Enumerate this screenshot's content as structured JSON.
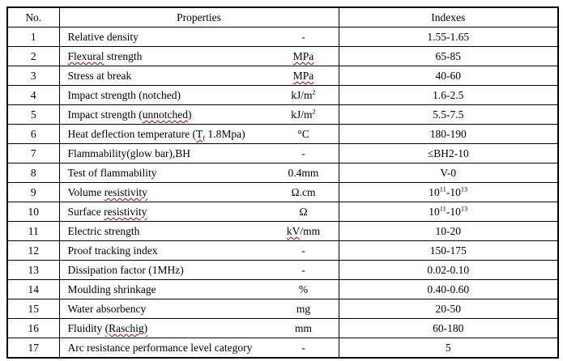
{
  "page": {
    "background": "#ffffff",
    "text_color": "#000000"
  },
  "table": {
    "border_color": "#000000",
    "squiggle_color": "#b00000",
    "headers": {
      "no": "No.",
      "properties": "Properties",
      "indexes": "Indexes"
    },
    "rows": [
      {
        "no": "1",
        "property": [
          {
            "t": "Relative density"
          }
        ],
        "unit": [
          {
            "t": "-"
          }
        ],
        "index": [
          {
            "t": "1.55-1.65"
          }
        ]
      },
      {
        "no": "2",
        "property": [
          {
            "t": "Flexural",
            "squiggle": true
          },
          {
            "t": " strength"
          }
        ],
        "unit": [
          {
            "t": "MPa",
            "squiggle": true
          }
        ],
        "index": [
          {
            "t": "65-85"
          }
        ]
      },
      {
        "no": "3",
        "property": [
          {
            "t": "Stress at break"
          }
        ],
        "unit": [
          {
            "t": "MPa",
            "squiggle": true
          }
        ],
        "index": [
          {
            "t": "40-60"
          }
        ]
      },
      {
        "no": "4",
        "property": [
          {
            "t": "Impact strength (notched)"
          }
        ],
        "unit": [
          {
            "t": "kJ/m"
          },
          {
            "t": "2",
            "style": "sup"
          }
        ],
        "index": [
          {
            "t": "1.6-2.5"
          }
        ]
      },
      {
        "no": "5",
        "property": [
          {
            "t": "Impact strength ("
          },
          {
            "t": "unnotched",
            "squiggle": true
          },
          {
            "t": ")"
          }
        ],
        "unit": [
          {
            "t": "kJ/m"
          },
          {
            "t": "2",
            "style": "sup"
          }
        ],
        "index": [
          {
            "t": "5.5-7.5"
          }
        ]
      },
      {
        "no": "6",
        "property": [
          {
            "t": "Heat deflection temperature ("
          },
          {
            "t": "T",
            "squiggle": true
          },
          {
            "t": "f",
            "style": "sub",
            "squiggle": true
          },
          {
            "t": " 1.8Mpa)"
          }
        ],
        "unit": [
          {
            "t": "°C"
          }
        ],
        "index": [
          {
            "t": "180-190"
          }
        ]
      },
      {
        "no": "7",
        "property": [
          {
            "t": "Flammability(glow bar),BH"
          }
        ],
        "unit": [
          {
            "t": "-"
          }
        ],
        "index": [
          {
            "t": "≤BH2-10"
          }
        ]
      },
      {
        "no": "8",
        "property": [
          {
            "t": "Test of flammability"
          }
        ],
        "unit": [
          {
            "t": "0.4mm"
          }
        ],
        "index": [
          {
            "t": "V-0"
          }
        ]
      },
      {
        "no": "9",
        "property": [
          {
            "t": "Volume "
          },
          {
            "t": "resistivity",
            "squiggle": true
          }
        ],
        "unit": [
          {
            "t": "Ω.cm"
          }
        ],
        "index": [
          {
            "t": "10"
          },
          {
            "t": "11",
            "style": "sup"
          },
          {
            "t": "-10"
          },
          {
            "t": "13",
            "style": "sup"
          }
        ]
      },
      {
        "no": "10",
        "property": [
          {
            "t": "Surface "
          },
          {
            "t": "resistivity",
            "squiggle": true
          }
        ],
        "unit": [
          {
            "t": "Ω"
          }
        ],
        "index": [
          {
            "t": "10"
          },
          {
            "t": "11",
            "style": "sup"
          },
          {
            "t": "-10"
          },
          {
            "t": "13",
            "style": "sup"
          }
        ]
      },
      {
        "no": "11",
        "property": [
          {
            "t": "Electric strength"
          }
        ],
        "unit": [
          {
            "t": "kV",
            "squiggle": true
          },
          {
            "t": "/mm"
          }
        ],
        "index": [
          {
            "t": "10-20"
          }
        ]
      },
      {
        "no": "12",
        "property": [
          {
            "t": "Proof tracking index"
          }
        ],
        "unit": [
          {
            "t": "-"
          }
        ],
        "index": [
          {
            "t": "150-175"
          }
        ]
      },
      {
        "no": "13",
        "property": [
          {
            "t": "Dissipation factor (1MHz)"
          }
        ],
        "unit": [
          {
            "t": "-"
          }
        ],
        "index": [
          {
            "t": "0.02-0.10"
          }
        ]
      },
      {
        "no": "14",
        "property": [
          {
            "t": "Moulding shrinkage"
          }
        ],
        "unit": [
          {
            "t": "%"
          }
        ],
        "index": [
          {
            "t": "0.40-0.60"
          }
        ]
      },
      {
        "no": "15",
        "property": [
          {
            "t": "Water absorbency"
          }
        ],
        "unit": [
          {
            "t": "mg"
          }
        ],
        "index": [
          {
            "t": "20-50"
          }
        ]
      },
      {
        "no": "16",
        "property": [
          {
            "t": "Fluidity "
          },
          {
            "t": "(Raschig)",
            "squiggle": true
          }
        ],
        "unit": [
          {
            "t": "mm"
          }
        ],
        "index": [
          {
            "t": "60-180"
          }
        ]
      },
      {
        "no": "17",
        "property": [
          {
            "t": "Arc resistance performance level category"
          }
        ],
        "unit": [
          {
            "t": "-"
          }
        ],
        "index": [
          {
            "t": "5"
          }
        ]
      }
    ]
  }
}
